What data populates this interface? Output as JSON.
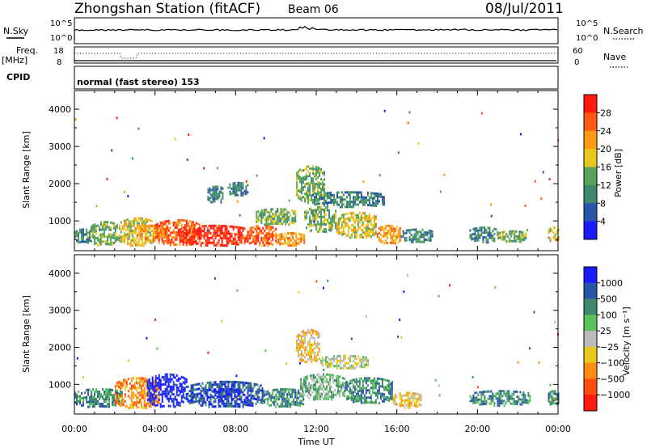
{
  "header": {
    "title": "Zhongshan Station (fitACF)",
    "beam": "Beam 06",
    "date": "08/Jul/2011"
  },
  "top_panels": {
    "nsky_label": "N.Sky",
    "nsky_ticks": [
      "10^5",
      "10^0"
    ],
    "nsearch_label": "N.Search",
    "nsearch_ticks": [
      "10^5",
      "10^0"
    ],
    "freq_label": "Freq.",
    "freq_unit": "[MHz]",
    "freq_ticks": [
      "18",
      "8"
    ],
    "nave_label": "Nave",
    "nave_ticks": [
      "60",
      "0"
    ],
    "cpid_label": "CPID",
    "cpid_text": "normal (fast stereo) 153"
  },
  "colors": {
    "power_scale": [
      "#1a1aff",
      "#2a55a8",
      "#3f8a6e",
      "#5aa35a",
      "#e6c81e",
      "#ff9a14",
      "#ff5a10",
      "#ff1a10"
    ],
    "velocity_scale": [
      "#1a1aff",
      "#2a55a8",
      "#3f8a6e",
      "#5ac25a",
      "#bbbbbb",
      "#e6c81e",
      "#ff8c14",
      "#ff4a10",
      "#ff1a10"
    ]
  },
  "chart_data": [
    {
      "type": "heatmap",
      "name": "power",
      "ylabel": "Slant Range [km]",
      "yticks": [
        "1000",
        "2000",
        "3000",
        "4000"
      ],
      "ylim": [
        200,
        4500
      ],
      "xticks": [
        "00:00",
        "04:00",
        "08:00",
        "12:00",
        "16:00",
        "20:00",
        "00:00"
      ],
      "xlim": [
        0,
        24
      ],
      "colorbar": {
        "label": "Power [dB]",
        "ticks": [
          "4",
          "8",
          "12",
          "16",
          "20",
          "24",
          "28"
        ]
      },
      "blobs": [
        {
          "x": [
            0.0,
            0.8
          ],
          "y": [
            420,
            800
          ],
          "level": 2
        },
        {
          "x": [
            0.8,
            2.2
          ],
          "y": [
            350,
            1000
          ],
          "level": 3
        },
        {
          "x": [
            2.2,
            4.0
          ],
          "y": [
            350,
            1100
          ],
          "level": 4
        },
        {
          "x": [
            3.0,
            4.6
          ],
          "y": [
            500,
            900
          ],
          "level": 5
        },
        {
          "x": [
            4.0,
            6.2
          ],
          "y": [
            350,
            1050
          ],
          "level": 6
        },
        {
          "x": [
            5.2,
            8.6
          ],
          "y": [
            350,
            900
          ],
          "level": 7
        },
        {
          "x": [
            8.6,
            10.0
          ],
          "y": [
            350,
            900
          ],
          "level": 6
        },
        {
          "x": [
            10.0,
            11.4
          ],
          "y": [
            350,
            700
          ],
          "level": 5
        },
        {
          "x": [
            9.0,
            11.0
          ],
          "y": [
            900,
            1350
          ],
          "level": 3
        },
        {
          "x": [
            7.6,
            8.6
          ],
          "y": [
            1700,
            2050
          ],
          "level": 2
        },
        {
          "x": [
            6.6,
            7.4
          ],
          "y": [
            1500,
            1950
          ],
          "level": 2
        },
        {
          "x": [
            11.0,
            12.4
          ],
          "y": [
            1500,
            2500
          ],
          "level": 3
        },
        {
          "x": [
            11.8,
            15.4
          ],
          "y": [
            1400,
            1800
          ],
          "level": 2
        },
        {
          "x": [
            11.4,
            13.0
          ],
          "y": [
            700,
            1400
          ],
          "level": 3
        },
        {
          "x": [
            13.0,
            15.0
          ],
          "y": [
            550,
            1250
          ],
          "level": 4
        },
        {
          "x": [
            15.0,
            16.2
          ],
          "y": [
            400,
            900
          ],
          "level": 5
        },
        {
          "x": [
            16.2,
            17.8
          ],
          "y": [
            450,
            800
          ],
          "level": 2
        },
        {
          "x": [
            19.6,
            21.0
          ],
          "y": [
            450,
            850
          ],
          "level": 2
        },
        {
          "x": [
            21.0,
            22.4
          ],
          "y": [
            450,
            750
          ],
          "level": 3
        },
        {
          "x": [
            23.5,
            24.0
          ],
          "y": [
            450,
            850
          ],
          "level": 4
        }
      ]
    },
    {
      "type": "heatmap",
      "name": "velocity",
      "ylabel": "Slant Range [km]",
      "yticks": [
        "1000",
        "2000",
        "3000",
        "4000"
      ],
      "ylim": [
        200,
        4500
      ],
      "xticks": [
        "00:00",
        "04:00",
        "08:00",
        "12:00",
        "16:00",
        "20:00",
        "00:00"
      ],
      "xlim": [
        0,
        24
      ],
      "xlabel": "Time UT",
      "colorbar": {
        "label": "Velocity [m s⁻¹]",
        "ticks": [
          "1000",
          "500",
          "100",
          "25",
          "−25",
          "−100",
          "−500",
          "−1000"
        ]
      },
      "blobs": [
        {
          "x": [
            0.0,
            2.4
          ],
          "y": [
            400,
            900
          ],
          "level": 2
        },
        {
          "x": [
            2.0,
            4.2
          ],
          "y": [
            350,
            1200
          ],
          "level": 6
        },
        {
          "x": [
            3.6,
            5.6
          ],
          "y": [
            400,
            1300
          ],
          "level": 0
        },
        {
          "x": [
            5.6,
            9.4
          ],
          "y": [
            400,
            1100
          ],
          "level": 1
        },
        {
          "x": [
            6.8,
            8.2
          ],
          "y": [
            600,
            900
          ],
          "level": 0
        },
        {
          "x": [
            9.4,
            11.4
          ],
          "y": [
            400,
            900
          ],
          "level": 2
        },
        {
          "x": [
            11.0,
            12.2
          ],
          "y": [
            1600,
            2500
          ],
          "level": 5
        },
        {
          "x": [
            12.2,
            14.6
          ],
          "y": [
            1450,
            1800
          ],
          "level": 4
        },
        {
          "x": [
            11.2,
            13.4
          ],
          "y": [
            600,
            1300
          ],
          "level": 3
        },
        {
          "x": [
            13.4,
            15.8
          ],
          "y": [
            500,
            1200
          ],
          "level": 2
        },
        {
          "x": [
            15.8,
            17.2
          ],
          "y": [
            400,
            800
          ],
          "level": 5
        },
        {
          "x": [
            19.6,
            22.6
          ],
          "y": [
            450,
            850
          ],
          "level": 2
        },
        {
          "x": [
            23.5,
            24.0
          ],
          "y": [
            450,
            850
          ],
          "level": 2
        }
      ]
    }
  ]
}
